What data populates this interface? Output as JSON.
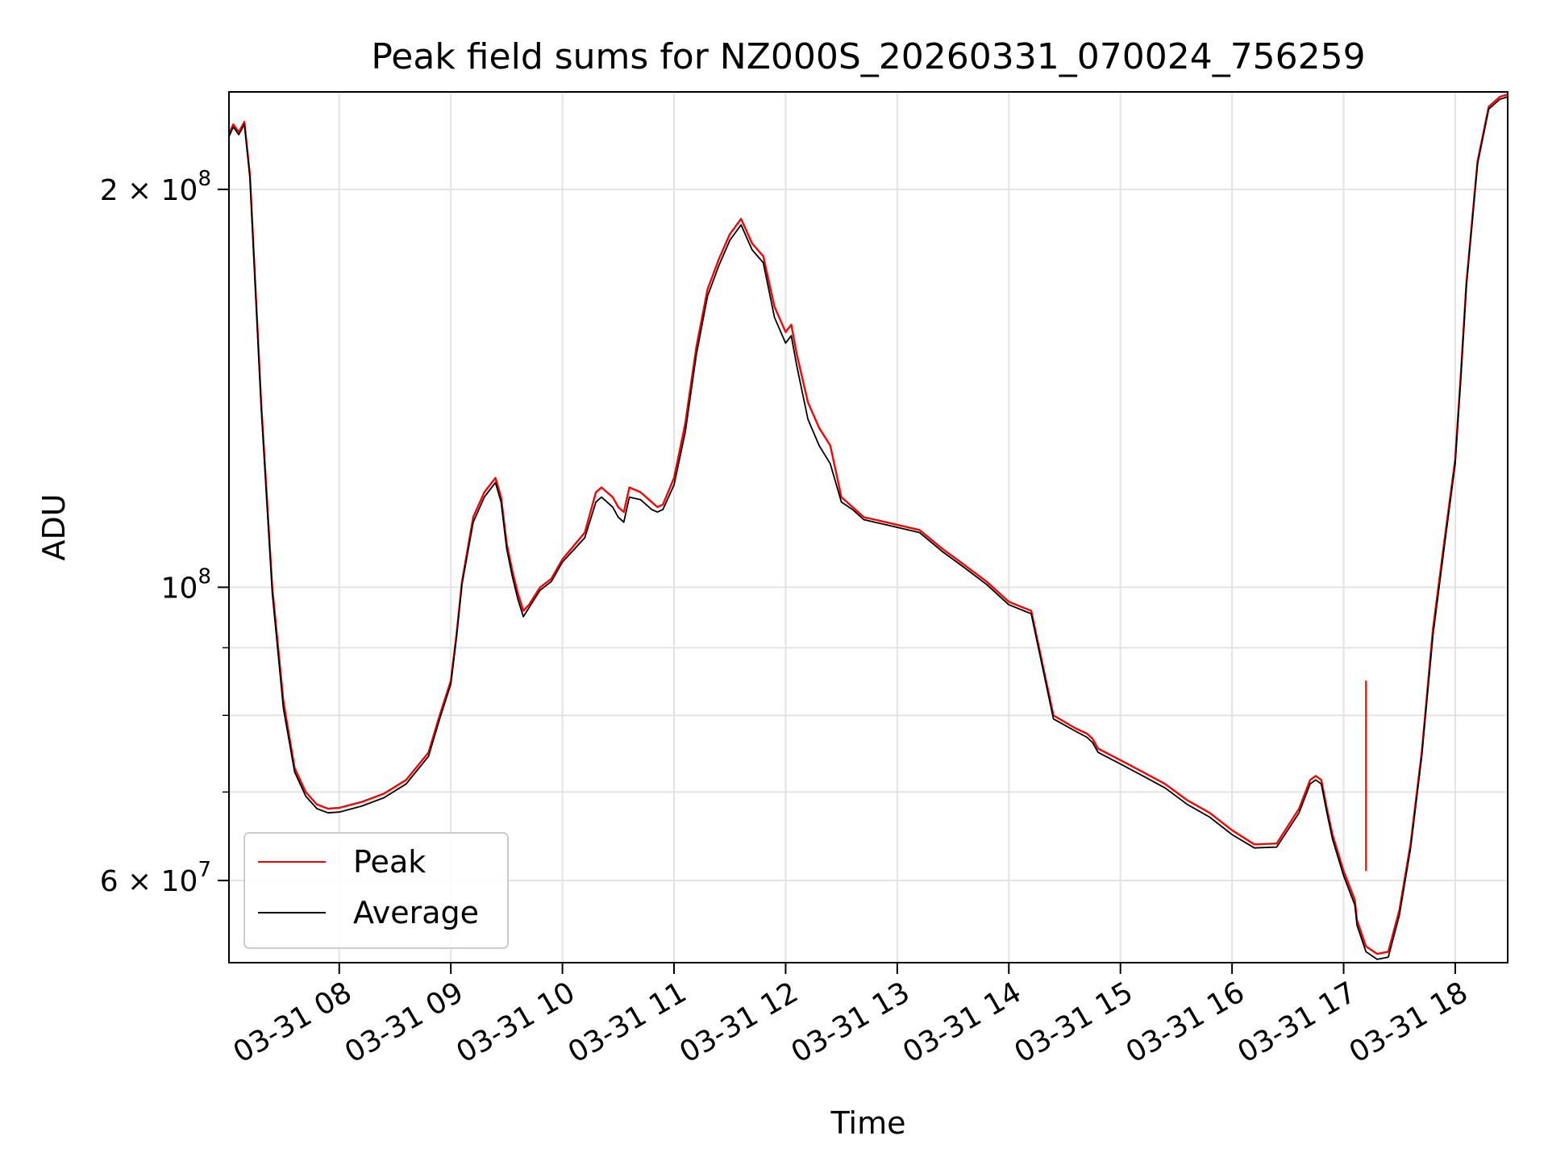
{
  "chart_data": {
    "type": "line",
    "title": "Peak field sums for NZ000S_20260331_070024_756259",
    "xlabel": "Time",
    "ylabel": "ADU",
    "y_scale": "log",
    "x_unit": "hours (decimal hour of day on 2026-03-31)",
    "xlim": [
      7.012,
      18.47
    ],
    "ylim": [
      52000000,
      237000000
    ],
    "x_ticks": [
      {
        "value": 8,
        "label": "03-31 08"
      },
      {
        "value": 9,
        "label": "03-31 09"
      },
      {
        "value": 10,
        "label": "03-31 10"
      },
      {
        "value": 11,
        "label": "03-31 11"
      },
      {
        "value": 12,
        "label": "03-31 12"
      },
      {
        "value": 13,
        "label": "03-31 13"
      },
      {
        "value": 14,
        "label": "03-31 14"
      },
      {
        "value": 15,
        "label": "03-31 15"
      },
      {
        "value": 16,
        "label": "03-31 16"
      },
      {
        "value": 17,
        "label": "03-31 17"
      },
      {
        "value": 18,
        "label": "03-31 18"
      }
    ],
    "y_ticks_major": [
      {
        "value": 60000000,
        "mantissa": "6",
        "exponent": "7"
      },
      {
        "value": 100000000,
        "mantissa": "",
        "exponent": "8"
      },
      {
        "value": 200000000,
        "mantissa": "2",
        "exponent": "8"
      }
    ],
    "y_ticks_minor": [
      70000000,
      80000000,
      90000000
    ],
    "grid": true,
    "legend_position": "lower-left",
    "legend_times_sign": "×",
    "legend_base": "10",
    "series": [
      {
        "name": "Peak",
        "color": "#ff0000",
        "x": [
          7.01,
          7.05,
          7.1,
          7.15,
          7.2,
          7.3,
          7.4,
          7.5,
          7.6,
          7.7,
          7.8,
          7.9,
          8.0,
          8.2,
          8.4,
          8.6,
          8.8,
          8.9,
          9.0,
          9.05,
          9.1,
          9.2,
          9.3,
          9.4,
          9.45,
          9.5,
          9.55,
          9.6,
          9.65,
          9.7,
          9.75,
          9.8,
          9.9,
          10.0,
          10.2,
          10.3,
          10.35,
          10.45,
          10.5,
          10.55,
          10.6,
          10.7,
          10.8,
          10.85,
          10.9,
          11.0,
          11.1,
          11.2,
          11.3,
          11.4,
          11.5,
          11.6,
          11.7,
          11.8,
          11.9,
          12.0,
          12.05,
          12.1,
          12.2,
          12.3,
          12.4,
          12.5,
          12.6,
          12.7,
          12.8,
          12.9,
          13.0,
          13.2,
          13.4,
          13.6,
          13.8,
          14.0,
          14.2,
          14.4,
          14.6,
          14.7,
          14.75,
          14.8,
          15.0,
          15.2,
          15.4,
          15.6,
          15.8,
          16.0,
          16.2,
          16.4,
          16.6,
          16.7,
          16.75,
          16.8,
          16.85,
          16.9,
          17.0,
          17.1,
          17.12,
          17.2,
          17.3,
          17.4,
          17.5,
          17.6,
          17.7,
          17.8,
          17.9,
          18.0,
          18.05,
          18.1,
          18.2,
          18.3,
          18.4,
          18.47
        ],
        "y": [
          220000000,
          224000000,
          221000000,
          225000000,
          205000000,
          138000000,
          100000000,
          82000000,
          73000000,
          70000000,
          68500000,
          68000000,
          68100000,
          68800000,
          69800000,
          71500000,
          75000000,
          80000000,
          85000000,
          92000000,
          101000000,
          113000000,
          118000000,
          121000000,
          117000000,
          108000000,
          103000000,
          99000000,
          96000000,
          97000000,
          98500000,
          100000000,
          101500000,
          105000000,
          110000000,
          118000000,
          119000000,
          117000000,
          115000000,
          114000000,
          119000000,
          118000000,
          116000000,
          115000000,
          115500000,
          121000000,
          133000000,
          152000000,
          168000000,
          177000000,
          185000000,
          190000000,
          182000000,
          178000000,
          163000000,
          156000000,
          158000000,
          150000000,
          138000000,
          132000000,
          128000000,
          117000000,
          115000000,
          113000000,
          112500000,
          112000000,
          111500000,
          110500000,
          107000000,
          104000000,
          101000000,
          97500000,
          96000000,
          80000000,
          78200000,
          77500000,
          76800000,
          75500000,
          74000000,
          72500000,
          71000000,
          69000000,
          67500000,
          65500000,
          63900000,
          64000000,
          68000000,
          71500000,
          72000000,
          71500000,
          68000000,
          65000000,
          61000000,
          58000000,
          56000000,
          53500000,
          52800000,
          53000000,
          57000000,
          64000000,
          75000000,
          93000000,
          108000000,
          125000000,
          145000000,
          170000000,
          210000000,
          231000000,
          235000000,
          236000000
        ]
      },
      {
        "name": "Average",
        "color": "#000000",
        "x": [
          7.01,
          7.05,
          7.1,
          7.15,
          7.2,
          7.3,
          7.4,
          7.5,
          7.6,
          7.7,
          7.8,
          7.9,
          8.0,
          8.2,
          8.4,
          8.6,
          8.8,
          8.9,
          9.0,
          9.05,
          9.1,
          9.2,
          9.3,
          9.4,
          9.45,
          9.5,
          9.55,
          9.6,
          9.65,
          9.7,
          9.75,
          9.8,
          9.9,
          10.0,
          10.2,
          10.3,
          10.35,
          10.45,
          10.5,
          10.55,
          10.6,
          10.7,
          10.8,
          10.85,
          10.9,
          11.0,
          11.1,
          11.2,
          11.3,
          11.4,
          11.5,
          11.6,
          11.7,
          11.8,
          11.9,
          12.0,
          12.05,
          12.1,
          12.2,
          12.3,
          12.4,
          12.5,
          12.6,
          12.7,
          12.8,
          12.9,
          13.0,
          13.2,
          13.4,
          13.6,
          13.8,
          14.0,
          14.2,
          14.4,
          14.6,
          14.7,
          14.75,
          14.8,
          15.0,
          15.2,
          15.4,
          15.6,
          15.8,
          16.0,
          16.2,
          16.4,
          16.6,
          16.7,
          16.75,
          16.8,
          16.85,
          16.9,
          17.0,
          17.1,
          17.12,
          17.2,
          17.3,
          17.4,
          17.5,
          17.6,
          17.7,
          17.8,
          17.9,
          18.0,
          18.05,
          18.1,
          18.2,
          18.3,
          18.4,
          18.47
        ],
        "y": [
          219000000,
          223000000,
          220000000,
          224000000,
          204000000,
          137000000,
          99000000,
          81000000,
          72500000,
          69500000,
          68000000,
          67500000,
          67600000,
          68300000,
          69300000,
          71000000,
          74500000,
          79500000,
          84500000,
          91500000,
          100500000,
          112000000,
          117000000,
          120000000,
          116000000,
          107000000,
          102000000,
          98000000,
          95000000,
          96500000,
          98000000,
          99500000,
          101000000,
          104500000,
          109000000,
          116000000,
          117000000,
          115000000,
          113000000,
          112000000,
          117000000,
          116500000,
          114500000,
          114000000,
          114500000,
          119500000,
          131000000,
          150000000,
          166000000,
          175000000,
          183000000,
          188000000,
          180000000,
          176000000,
          160000000,
          153000000,
          155000000,
          147000000,
          134000000,
          128000000,
          124000000,
          116000000,
          114500000,
          112500000,
          112000000,
          111500000,
          111000000,
          110000000,
          106500000,
          103500000,
          100500000,
          97000000,
          95500000,
          79500000,
          77800000,
          77000000,
          76300000,
          75000000,
          73500000,
          72000000,
          70500000,
          68500000,
          67000000,
          65000000,
          63500000,
          63600000,
          67500000,
          71000000,
          71500000,
          71000000,
          67500000,
          64500000,
          60500000,
          57500000,
          55500000,
          53000000,
          52300000,
          52500000,
          56500000,
          63500000,
          74500000,
          92000000,
          107000000,
          124000000,
          144000000,
          169000000,
          209000000,
          230000000,
          234000000,
          235000000
        ]
      }
    ],
    "spikes": [
      {
        "series": "Peak",
        "x": 17.2,
        "y_from": 61000000,
        "y_to": 85000000
      }
    ]
  }
}
